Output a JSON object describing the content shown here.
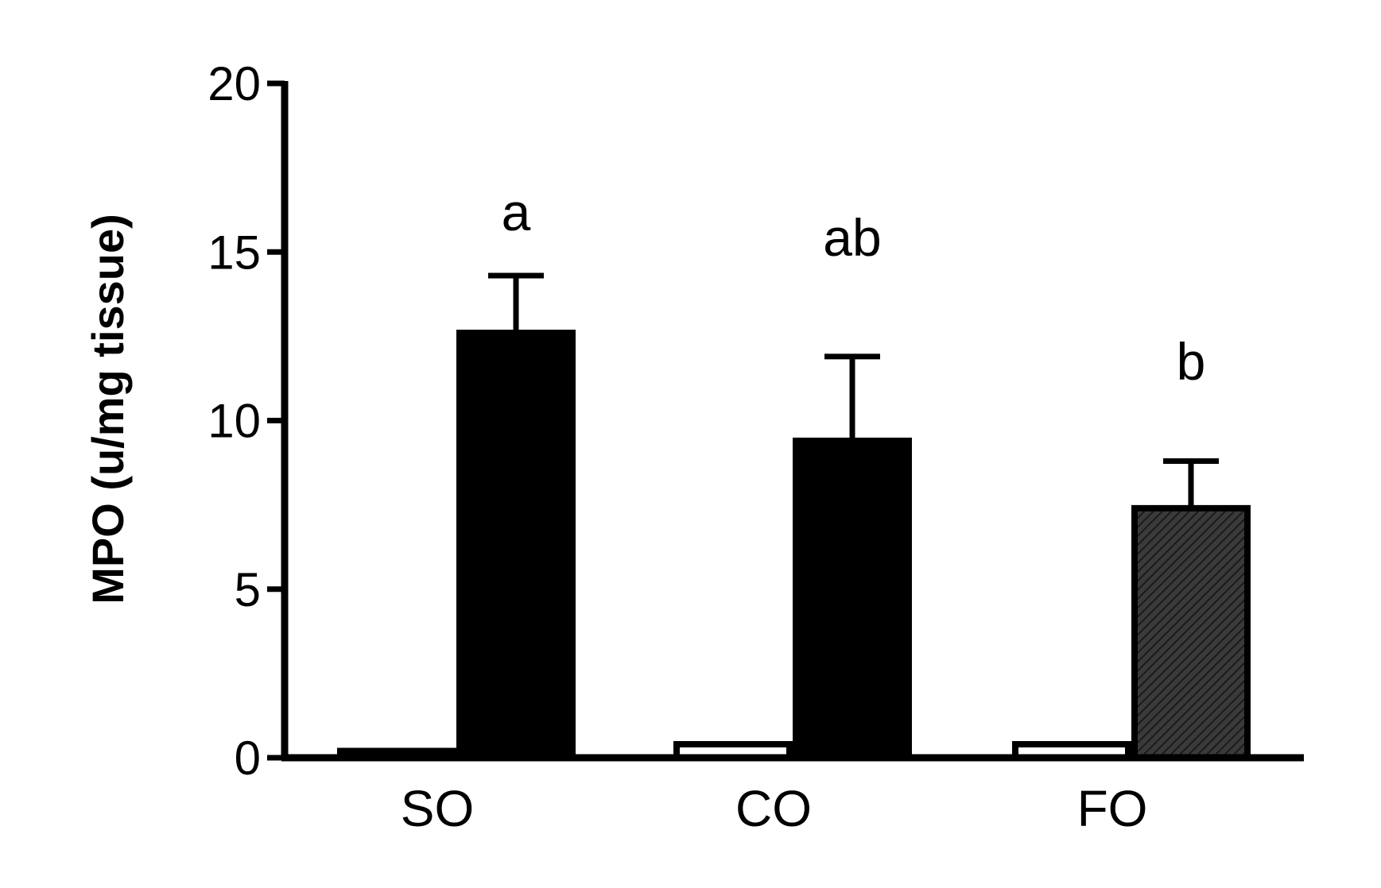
{
  "chart_data": {
    "type": "bar",
    "title": "",
    "xlabel": "",
    "ylabel": "MPO (u/mg tissue)",
    "ylim": [
      0,
      20
    ],
    "yticks": [
      "0",
      "5",
      "10",
      "15",
      "20"
    ],
    "grid": false,
    "categories": [
      "SO",
      "CO",
      "FO"
    ],
    "series": [
      {
        "values": [
          0.2,
          0.4,
          0.4
        ],
        "errors": [
          0,
          0,
          0
        ],
        "fill": "#ffffff"
      },
      {
        "values": [
          12.6,
          9.4,
          7.4
        ],
        "errors": [
          1.7,
          2.5,
          1.4
        ],
        "fill": "#000000",
        "fills": [
          "#000000",
          "#000000",
          "#262626"
        ]
      }
    ],
    "annotations": [
      "a",
      "ab",
      "b"
    ]
  }
}
